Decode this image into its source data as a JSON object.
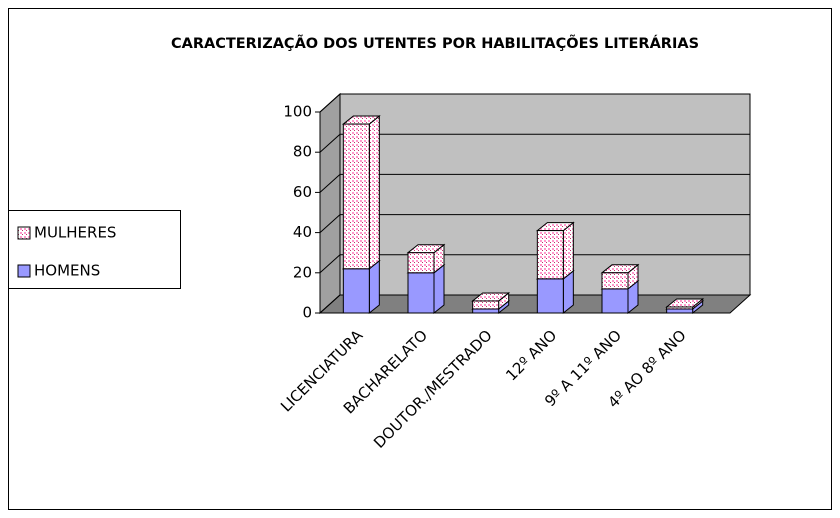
{
  "chart_data": {
    "type": "bar3d_stacked",
    "title": "CARACTERIZAÇÃO DOS UTENTES POR HABILITAÇÕES LITERÁRIAS",
    "categories": [
      "LICENCIATURA",
      "BACHARELATO",
      "DOUTOR./MESTRADO",
      "12º ANO",
      "9º A 11º ANO",
      "4º AO 8º ANO"
    ],
    "series": [
      {
        "name": "HOMENS",
        "color": "#9999ff",
        "values": [
          22,
          20,
          2,
          17,
          12,
          2
        ]
      },
      {
        "name": "MULHERES",
        "color": "#ff99cc",
        "values": [
          72,
          10,
          4,
          24,
          8,
          1
        ]
      }
    ],
    "ylim": [
      0,
      100
    ],
    "yticks": [
      0,
      20,
      40,
      60,
      80,
      100
    ],
    "grid": true,
    "legend": "left"
  }
}
